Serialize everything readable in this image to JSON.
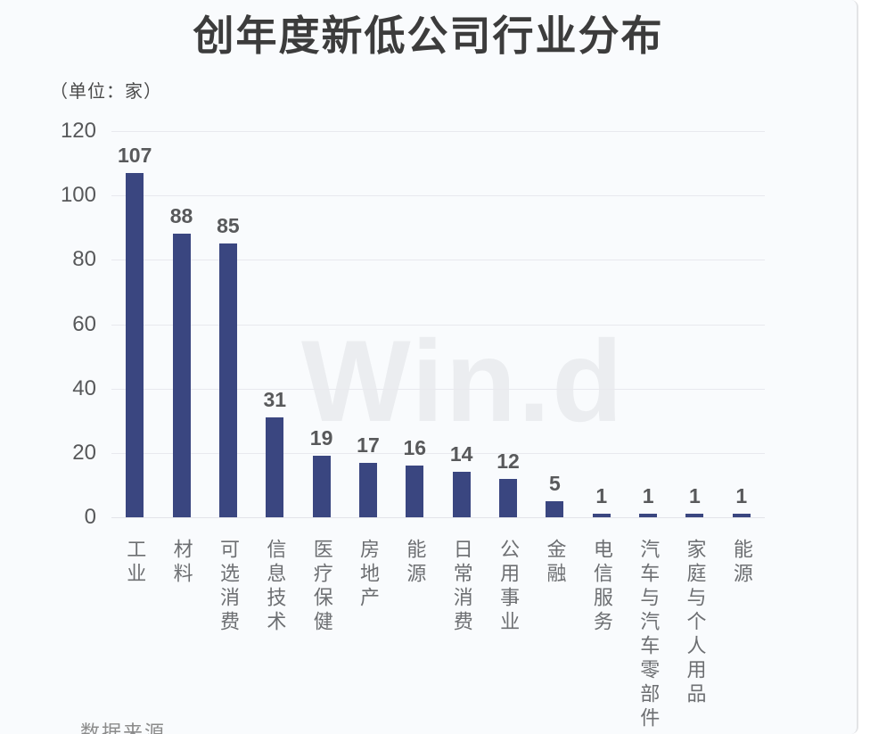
{
  "chart": {
    "title": "创年度新低公司行业分布",
    "unit_label": "（单位：家）",
    "watermark": "Win.d"
  },
  "chart_data": {
    "type": "bar",
    "title": "创年度新低公司行业分布",
    "unit": "家",
    "categories": [
      "工业",
      "材料",
      "可选消费",
      "信息技术",
      "医疗保健",
      "房地产",
      "能源",
      "日常消费",
      "公用事业",
      "金融",
      "电信服务",
      "汽车与汽车零部件",
      "家庭与个人用品",
      "能源"
    ],
    "values": [
      107,
      88,
      85,
      31,
      19,
      17,
      16,
      14,
      12,
      5,
      1,
      1,
      1,
      1
    ],
    "xlabel": "",
    "ylabel": "",
    "ylim": [
      0,
      120
    ],
    "yticks": [
      0,
      20,
      40,
      60,
      80,
      100,
      120
    ],
    "grid": true,
    "legend_position": "none",
    "bar_color": "#3a4680",
    "background_color": "#f9fbfd",
    "gridline_color": "#e8e9ee"
  },
  "footer": {
    "source_label": "数据来源"
  }
}
